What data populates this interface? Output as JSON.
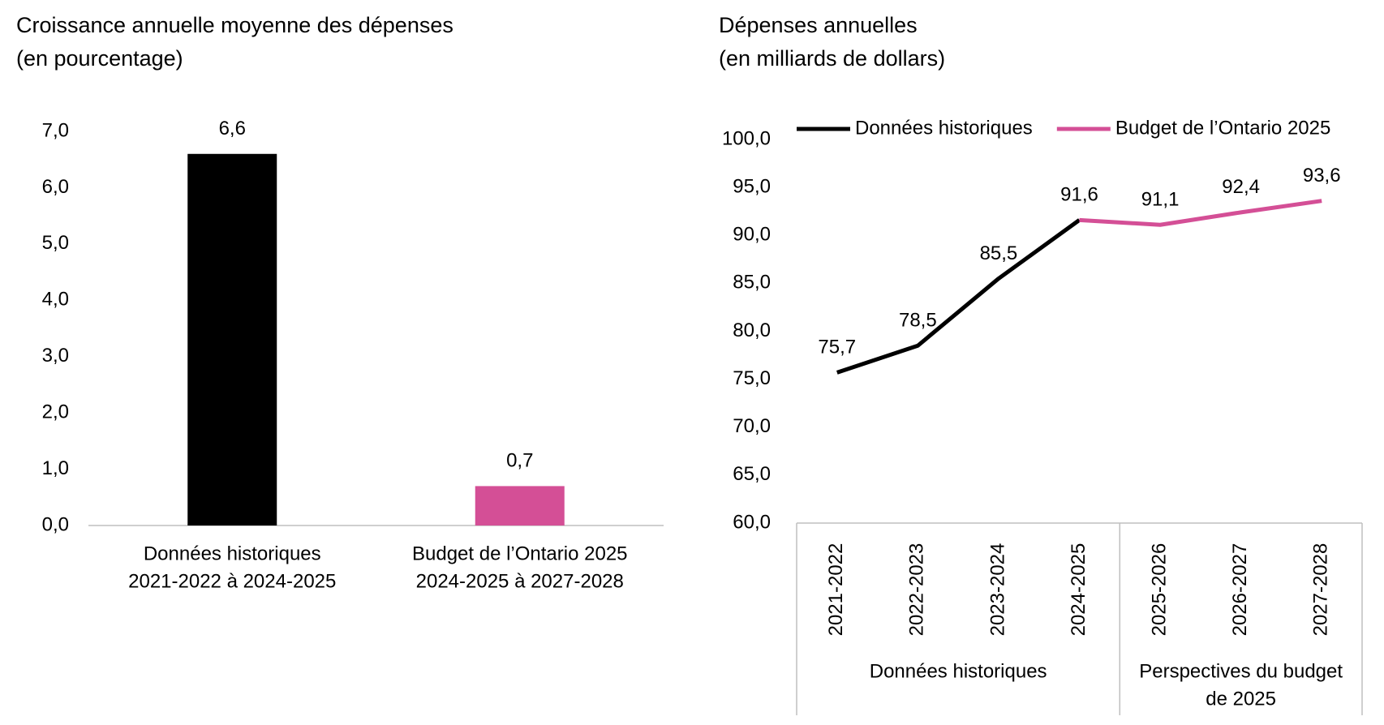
{
  "chart_data": [
    {
      "type": "bar",
      "title": "Croissance annuelle moyenne des dépenses",
      "subtitle": "(en pourcentage)",
      "categories": [
        [
          "Données historiques",
          "2021-2022 à 2024-2025"
        ],
        [
          "Budget de l’Ontario 2025",
          "2024-2025 à 2027-2028"
        ]
      ],
      "values": [
        6.6,
        0.7
      ],
      "value_labels": [
        "6,6",
        "0,7"
      ],
      "colors": [
        "#000000",
        "#d44f96"
      ],
      "ylim": [
        0,
        7
      ],
      "yticks": [
        {
          "value": 0,
          "label": "0,0"
        },
        {
          "value": 1,
          "label": "1,0"
        },
        {
          "value": 2,
          "label": "2,0"
        },
        {
          "value": 3,
          "label": "3,0"
        },
        {
          "value": 4,
          "label": "4,0"
        },
        {
          "value": 5,
          "label": "5,0"
        },
        {
          "value": 6,
          "label": "6,0"
        },
        {
          "value": 7,
          "label": "7,0"
        }
      ],
      "grid": false
    },
    {
      "type": "line",
      "title": "Dépenses annuelles",
      "subtitle": "(en milliards de dollars)",
      "categories": [
        "2021-2022",
        "2022-2023",
        "2023-2024",
        "2024-2025",
        "2025-2026",
        "2026-2027",
        "2027-2028"
      ],
      "category_groups": [
        {
          "label": [
            "Données historiques"
          ],
          "size": 4
        },
        {
          "label": [
            "Perspectives du budget",
            "de 2025"
          ],
          "size": 3
        }
      ],
      "series": [
        {
          "name": "Données historiques",
          "color": "#000000",
          "values": [
            75.7,
            78.5,
            85.5,
            91.6,
            null,
            null,
            null
          ],
          "value_labels": [
            "75,7",
            "78,5",
            "85,5",
            "91,6",
            null,
            null,
            null
          ]
        },
        {
          "name": "Budget de l’Ontario 2025",
          "color": "#d44f96",
          "values": [
            null,
            null,
            null,
            91.6,
            91.1,
            92.4,
            93.6
          ],
          "value_labels": [
            null,
            null,
            null,
            null,
            "91,1",
            "92,4",
            "93,6"
          ]
        }
      ],
      "ylim": [
        60,
        100
      ],
      "yticks": [
        {
          "value": 60,
          "label": "60,0"
        },
        {
          "value": 65,
          "label": "65,0"
        },
        {
          "value": 70,
          "label": "70,0"
        },
        {
          "value": 75,
          "label": "75,0"
        },
        {
          "value": 80,
          "label": "80,0"
        },
        {
          "value": 85,
          "label": "85,0"
        },
        {
          "value": 90,
          "label": "90,0"
        },
        {
          "value": 95,
          "label": "95,0"
        },
        {
          "value": 100,
          "label": "100,0"
        }
      ],
      "legend": "top",
      "grid": false
    }
  ]
}
